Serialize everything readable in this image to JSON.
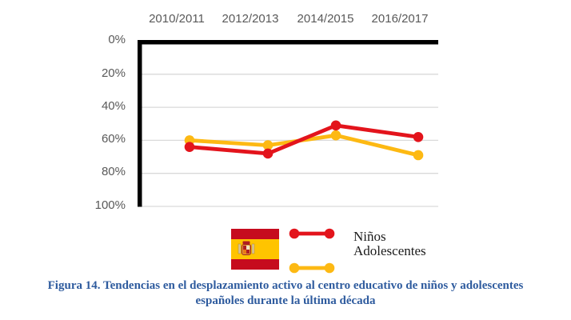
{
  "chart_data": {
    "type": "line",
    "title": "",
    "categories": [
      "2010/2011",
      "2012/2013",
      "2014/2015",
      "2016/2017"
    ],
    "y_ticks": [
      "0%",
      "20%",
      "40%",
      "60%",
      "80%",
      "100%"
    ],
    "axis": {
      "y_min": 0,
      "y_max": 100,
      "y_unit": "%",
      "y_reversed": true,
      "x_labels_position": "top",
      "grid": true
    },
    "series": [
      {
        "name": "Niños",
        "color": "#e3141c",
        "values": [
          64,
          68,
          51,
          58
        ]
      },
      {
        "name": "Adolescentes",
        "color": "#fdb913",
        "values": [
          60,
          63,
          57,
          69
        ]
      }
    ],
    "legend_position": "bottom",
    "marker": "circle"
  },
  "legend": {
    "flag_icon": "spain-flag",
    "items": [
      {
        "label": "Niños",
        "color": "#e3141c"
      },
      {
        "label": "Adolescentes",
        "color": "#fdb913"
      }
    ]
  },
  "caption": {
    "line1": "Figura 14. Tendencias en el desplazamiento activo al centro educativo de niños y adolescentes",
    "line2": "españoles durante la última década"
  },
  "colors": {
    "axis": "#000000",
    "gridline": "#d9d9d9",
    "tick_text": "#595959",
    "caption_text": "#2e5b9e",
    "flag_red": "#c60b1e",
    "flag_yellow": "#ffc400"
  }
}
